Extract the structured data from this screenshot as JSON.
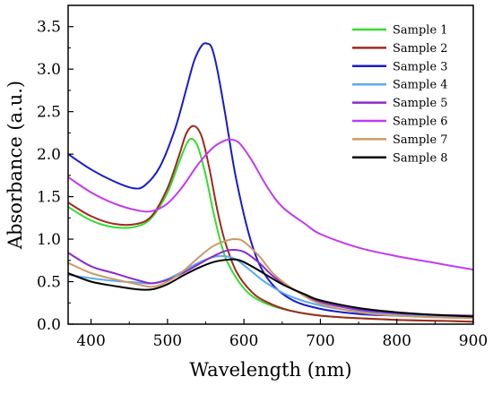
{
  "chart_data": {
    "type": "line",
    "title": "",
    "xlabel": "Wavelength (nm)",
    "ylabel": "Absorbance (a.u.)",
    "xlim": [
      370,
      900
    ],
    "ylim": [
      0.0,
      3.75
    ],
    "xticks": [
      400,
      500,
      600,
      700,
      800,
      900
    ],
    "yticks": [
      0.0,
      0.5,
      1.0,
      1.5,
      2.0,
      2.5,
      3.0,
      3.5
    ],
    "ytick_labels": [
      "0.0",
      "0.5",
      "1.0",
      "1.5",
      "2.0",
      "2.5",
      "3.0",
      "3.5"
    ],
    "grid": false,
    "legend_position": "top-right",
    "series": [
      {
        "name": "Sample 1",
        "color": "#33dd33",
        "x": [
          370,
          400,
          430,
          460,
          480,
          500,
          515,
          525,
          532,
          540,
          550,
          560,
          570,
          580,
          600,
          620,
          650,
          700,
          750,
          800,
          850,
          900
        ],
        "y": [
          1.38,
          1.22,
          1.14,
          1.15,
          1.26,
          1.55,
          1.9,
          2.12,
          2.18,
          2.08,
          1.75,
          1.32,
          0.95,
          0.7,
          0.42,
          0.28,
          0.18,
          0.1,
          0.07,
          0.05,
          0.04,
          0.03
        ]
      },
      {
        "name": "Sample 2",
        "color": "#a0281e",
        "x": [
          370,
          400,
          430,
          460,
          480,
          500,
          515,
          525,
          535,
          545,
          555,
          565,
          575,
          590,
          610,
          630,
          660,
          700,
          750,
          800,
          850,
          900
        ],
        "y": [
          1.43,
          1.27,
          1.18,
          1.18,
          1.28,
          1.6,
          1.98,
          2.25,
          2.33,
          2.2,
          1.82,
          1.35,
          0.98,
          0.62,
          0.38,
          0.26,
          0.16,
          0.1,
          0.07,
          0.05,
          0.04,
          0.03
        ]
      },
      {
        "name": "Sample 3",
        "color": "#1a1acc",
        "x": [
          370,
          400,
          430,
          455,
          470,
          490,
          510,
          525,
          535,
          545,
          552,
          558,
          565,
          575,
          590,
          610,
          630,
          660,
          700,
          750,
          800,
          850,
          900
        ],
        "y": [
          2.0,
          1.82,
          1.68,
          1.6,
          1.63,
          1.85,
          2.3,
          2.78,
          3.1,
          3.28,
          3.3,
          3.25,
          3.0,
          2.5,
          1.7,
          0.95,
          0.55,
          0.3,
          0.18,
          0.12,
          0.1,
          0.09,
          0.08
        ]
      },
      {
        "name": "Sample 4",
        "color": "#5aaaee",
        "x": [
          370,
          400,
          430,
          460,
          480,
          500,
          520,
          540,
          560,
          575,
          590,
          610,
          630,
          660,
          700,
          750,
          800,
          850,
          900
        ],
        "y": [
          0.58,
          0.54,
          0.51,
          0.49,
          0.48,
          0.53,
          0.62,
          0.72,
          0.79,
          0.8,
          0.76,
          0.62,
          0.48,
          0.33,
          0.22,
          0.15,
          0.12,
          0.1,
          0.09
        ]
      },
      {
        "name": "Sample 5",
        "color": "#8a2bcc",
        "x": [
          370,
          400,
          430,
          460,
          480,
          500,
          520,
          540,
          560,
          580,
          600,
          620,
          640,
          670,
          700,
          750,
          800,
          850,
          900
        ],
        "y": [
          0.84,
          0.68,
          0.6,
          0.52,
          0.48,
          0.52,
          0.6,
          0.7,
          0.8,
          0.87,
          0.85,
          0.72,
          0.55,
          0.38,
          0.26,
          0.17,
          0.13,
          0.11,
          0.1
        ]
      },
      {
        "name": "Sample 6",
        "color": "#c23bf0",
        "x": [
          370,
          400,
          430,
          460,
          480,
          500,
          520,
          540,
          560,
          575,
          585,
          595,
          610,
          630,
          650,
          680,
          700,
          750,
          800,
          850,
          900
        ],
        "y": [
          1.73,
          1.55,
          1.42,
          1.34,
          1.33,
          1.42,
          1.62,
          1.88,
          2.08,
          2.16,
          2.17,
          2.12,
          1.93,
          1.62,
          1.38,
          1.18,
          1.06,
          0.9,
          0.8,
          0.72,
          0.64
        ]
      },
      {
        "name": "Sample 7",
        "color": "#cc9966",
        "x": [
          370,
          400,
          430,
          460,
          480,
          500,
          520,
          540,
          560,
          580,
          590,
          600,
          620,
          640,
          670,
          700,
          750,
          800,
          850,
          900
        ],
        "y": [
          0.72,
          0.6,
          0.53,
          0.47,
          0.44,
          0.5,
          0.62,
          0.78,
          0.92,
          0.99,
          1.0,
          0.97,
          0.8,
          0.58,
          0.38,
          0.24,
          0.14,
          0.1,
          0.08,
          0.07
        ]
      },
      {
        "name": "Sample 8",
        "color": "#000000",
        "x": [
          370,
          400,
          430,
          460,
          480,
          500,
          520,
          540,
          560,
          580,
          590,
          600,
          620,
          650,
          680,
          700,
          750,
          800,
          850,
          900
        ],
        "y": [
          0.6,
          0.5,
          0.45,
          0.41,
          0.41,
          0.47,
          0.57,
          0.66,
          0.73,
          0.76,
          0.76,
          0.73,
          0.63,
          0.47,
          0.35,
          0.28,
          0.19,
          0.14,
          0.11,
          0.09
        ]
      }
    ]
  }
}
